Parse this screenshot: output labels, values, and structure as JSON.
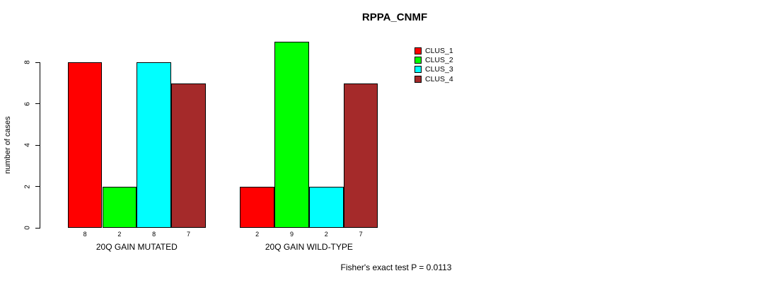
{
  "page": {
    "background": "#ffffff",
    "text_color": "#000000"
  },
  "chart_data": {
    "type": "bar",
    "title": "RPPA_CNMF",
    "xlabel": "",
    "ylabel": "number of cases",
    "ylim": [
      0,
      9
    ],
    "yticks": [
      0,
      2,
      4,
      6,
      8
    ],
    "grid": false,
    "legend_position": "top-right",
    "show_values_below_bars": true,
    "categories": [
      "20Q GAIN MUTATED",
      "20Q GAIN WILD-TYPE"
    ],
    "series": [
      {
        "name": "CLUS_1",
        "color": "#FF0000",
        "values": [
          8,
          2
        ]
      },
      {
        "name": "CLUS_2",
        "color": "#00FF00",
        "values": [
          2,
          9
        ]
      },
      {
        "name": "CLUS_3",
        "color": "#00FFFF",
        "values": [
          8,
          2
        ]
      },
      {
        "name": "CLUS_4",
        "color": "#A52A2A",
        "values": [
          7,
          7
        ]
      }
    ],
    "annotation": "Fisher's exact test P = 0.0113"
  }
}
